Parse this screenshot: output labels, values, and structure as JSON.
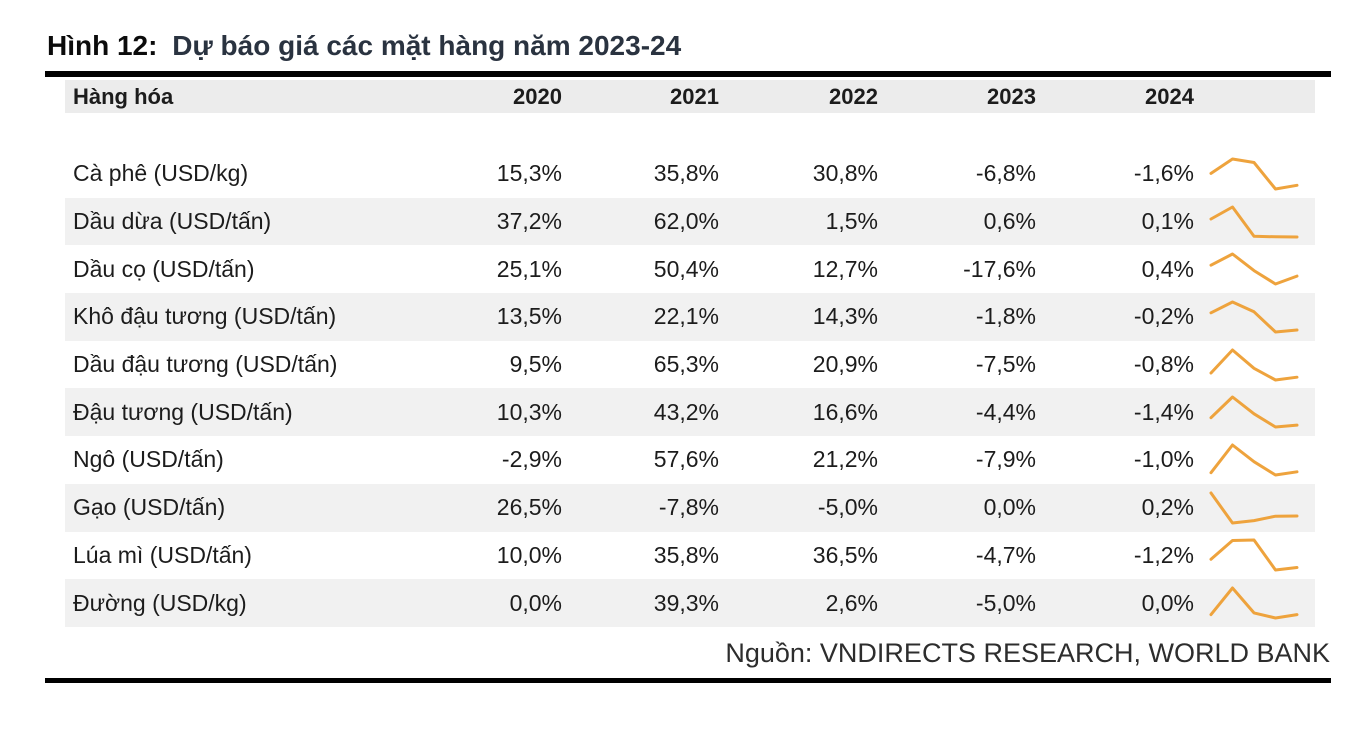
{
  "figure": {
    "title_prefix": "Hình 12:",
    "title_rest": "Dự báo giá các mặt hàng năm 2023-24",
    "source_note": "Nguồn: VNDIRECTS RESEARCH, WORLD BANK"
  },
  "table": {
    "header": {
      "name": "Hàng hóa",
      "years": [
        "2020",
        "2021",
        "2022",
        "2023",
        "2024"
      ]
    }
  },
  "chart_data": {
    "type": "table",
    "title": "Hình 12: Dự báo giá các mặt hàng năm 2023-24",
    "columns": [
      "Hàng hóa",
      "2020",
      "2021",
      "2022",
      "2023",
      "2024"
    ],
    "sparkline_column": true,
    "rows": [
      {
        "name": "Cà phê (USD/kg)",
        "display": [
          "15,3%",
          "35,8%",
          "30,8%",
          "-6,8%",
          "-1,6%"
        ],
        "values": [
          15.3,
          35.8,
          30.8,
          -6.8,
          -1.6
        ]
      },
      {
        "name": "Dầu dừa (USD/tấn)",
        "display": [
          "37,2%",
          "62,0%",
          "1,5%",
          "0,6%",
          "0,1%"
        ],
        "values": [
          37.2,
          62.0,
          1.5,
          0.6,
          0.1
        ]
      },
      {
        "name": "Dầu cọ (USD/tấn)",
        "display": [
          "25,1%",
          "50,4%",
          "12,7%",
          "-17,6%",
          "0,4%"
        ],
        "values": [
          25.1,
          50.4,
          12.7,
          -17.6,
          0.4
        ]
      },
      {
        "name": "Khô đậu tương (USD/tấn)",
        "display": [
          "13,5%",
          "22,1%",
          "14,3%",
          "-1,8%",
          "-0,2%"
        ],
        "values": [
          13.5,
          22.1,
          14.3,
          -1.8,
          -0.2
        ]
      },
      {
        "name": "Dầu đậu tương (USD/tấn)",
        "display": [
          "9,5%",
          "65,3%",
          "20,9%",
          "-7,5%",
          "-0,8%"
        ],
        "values": [
          9.5,
          65.3,
          20.9,
          -7.5,
          -0.8
        ]
      },
      {
        "name": "Đậu tương (USD/tấn)",
        "display": [
          "10,3%",
          "43,2%",
          "16,6%",
          "-4,4%",
          "-1,4%"
        ],
        "values": [
          10.3,
          43.2,
          16.6,
          -4.4,
          -1.4
        ]
      },
      {
        "name": "Ngô (USD/tấn)",
        "display": [
          "-2,9%",
          "57,6%",
          "21,2%",
          "-7,9%",
          "-1,0%"
        ],
        "values": [
          -2.9,
          57.6,
          21.2,
          -7.9,
          -1.0
        ]
      },
      {
        "name": "Gạo (USD/tấn)",
        "display": [
          "26,5%",
          "-7,8%",
          "-5,0%",
          "0,0%",
          "0,2%"
        ],
        "values": [
          26.5,
          -7.8,
          -5.0,
          0.0,
          0.2
        ]
      },
      {
        "name": "Lúa mì (USD/tấn)",
        "display": [
          "10,0%",
          "35,8%",
          "36,5%",
          "-4,7%",
          "-1,2%"
        ],
        "values": [
          10.0,
          35.8,
          36.5,
          -4.7,
          -1.2
        ]
      },
      {
        "name": "Đường (USD/kg)",
        "display": [
          "0,0%",
          "39,3%",
          "2,6%",
          "-5,0%",
          "0,0%"
        ],
        "values": [
          0.0,
          39.3,
          2.6,
          -5.0,
          0.0
        ]
      }
    ]
  },
  "colors": {
    "sparkline_orange": "#EEA33D",
    "header_row_bg": "#ECECEC",
    "zebra_stripe_bg": "#F1F1F1",
    "rule_black": "#000000",
    "title_rest_color": "#2A3340",
    "text_color": "#1C1C1C"
  }
}
